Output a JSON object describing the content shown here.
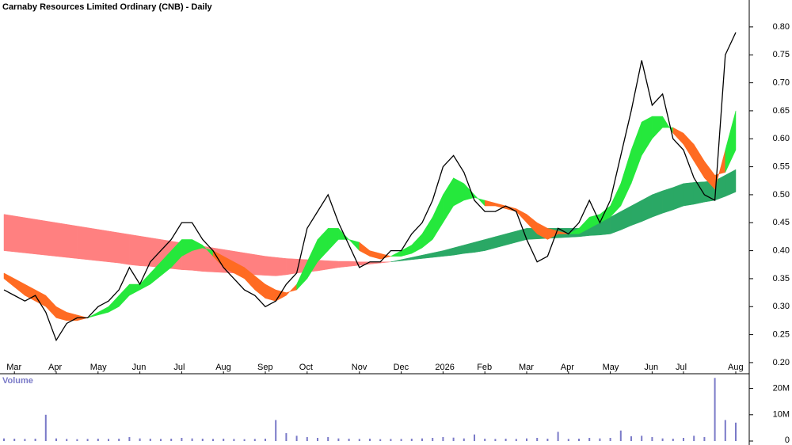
{
  "chart_data": [
    {
      "type": "line",
      "title": "Carnaby Resources Limited Ordinary (CNB) - Daily",
      "categories": [
        null,
        "Mar",
        null,
        null,
        null,
        "Apr",
        null,
        null,
        null,
        "May",
        null,
        null,
        null,
        "Jun",
        null,
        null,
        null,
        "Jul",
        null,
        null,
        null,
        "Aug",
        null,
        null,
        null,
        "Sep",
        null,
        null,
        null,
        "Oct",
        null,
        null,
        null,
        null,
        "Nov",
        null,
        null,
        null,
        "Dec",
        null,
        null,
        null,
        "2026",
        null,
        null,
        null,
        "Feb",
        null,
        null,
        null,
        "Mar",
        null,
        null,
        null,
        "Apr",
        null,
        null,
        null,
        "May",
        null,
        null,
        null,
        "Jun",
        null,
        null,
        "Jul",
        null,
        null,
        null,
        null,
        "Aug"
      ],
      "series": [
        {
          "color": "#000000",
          "values": [
            0.33,
            0.32,
            0.31,
            0.32,
            0.29,
            0.24,
            0.27,
            0.28,
            0.28,
            0.3,
            0.31,
            0.33,
            0.37,
            0.34,
            0.38,
            0.4,
            0.42,
            0.45,
            0.45,
            0.42,
            0.4,
            0.37,
            0.35,
            0.33,
            0.32,
            0.3,
            0.31,
            0.34,
            0.36,
            0.44,
            0.47,
            0.5,
            0.45,
            0.41,
            0.37,
            0.38,
            0.38,
            0.4,
            0.4,
            0.43,
            0.45,
            0.49,
            0.55,
            0.57,
            0.54,
            0.49,
            0.47,
            0.47,
            0.48,
            0.47,
            0.42,
            0.38,
            0.39,
            0.44,
            0.43,
            0.45,
            0.49,
            0.45,
            0.49,
            0.57,
            0.65,
            0.74,
            0.66,
            0.68,
            0.6,
            0.58,
            0.53,
            0.5,
            0.49,
            0.75,
            0.79
          ]
        }
      ],
      "bands": [
        {
          "up_color": "#2aa865",
          "down_color": "#ff8080",
          "fast": [
            0.4,
            0.398,
            0.396,
            0.394,
            0.392,
            0.39,
            0.388,
            0.386,
            0.384,
            0.382,
            0.38,
            0.378,
            0.375,
            0.373,
            0.372,
            0.37,
            0.368,
            0.366,
            0.365,
            0.363,
            0.362,
            0.361,
            0.36,
            0.358,
            0.357,
            0.356,
            0.355,
            0.357,
            0.36,
            0.362,
            0.364,
            0.367,
            0.37,
            0.372,
            0.374,
            0.376,
            0.378,
            0.38,
            0.384,
            0.388,
            0.392,
            0.396,
            0.4,
            0.405,
            0.41,
            0.415,
            0.42,
            0.425,
            0.43,
            0.435,
            0.44,
            0.44,
            0.44,
            0.44,
            0.44,
            0.44,
            0.447,
            0.453,
            0.46,
            0.47,
            0.48,
            0.49,
            0.5,
            0.507,
            0.513,
            0.52,
            0.522,
            0.523,
            0.525,
            0.535,
            0.545
          ],
          "slow": [
            0.465,
            0.462,
            0.459,
            0.456,
            0.453,
            0.45,
            0.447,
            0.444,
            0.441,
            0.438,
            0.435,
            0.432,
            0.429,
            0.426,
            0.423,
            0.42,
            0.417,
            0.414,
            0.411,
            0.408,
            0.405,
            0.402,
            0.399,
            0.396,
            0.393,
            0.39,
            0.388,
            0.386,
            0.385,
            0.384,
            0.383,
            0.382,
            0.381,
            0.381,
            0.38,
            0.38,
            0.38,
            0.38,
            0.382,
            0.384,
            0.386,
            0.388,
            0.39,
            0.392,
            0.395,
            0.397,
            0.4,
            0.405,
            0.41,
            0.415,
            0.42,
            0.421,
            0.422,
            0.423,
            0.424,
            0.425,
            0.427,
            0.428,
            0.43,
            0.437,
            0.445,
            0.452,
            0.46,
            0.467,
            0.473,
            0.48,
            0.483,
            0.487,
            0.49,
            0.497,
            0.505
          ]
        },
        {
          "up_color": "#25e83c",
          "down_color": "#ff6b22",
          "fast": [
            0.35,
            0.335,
            0.32,
            0.31,
            0.3,
            0.28,
            0.275,
            0.275,
            0.28,
            0.29,
            0.3,
            0.32,
            0.34,
            0.34,
            0.36,
            0.38,
            0.4,
            0.42,
            0.42,
            0.41,
            0.39,
            0.37,
            0.36,
            0.35,
            0.33,
            0.315,
            0.31,
            0.32,
            0.34,
            0.38,
            0.42,
            0.44,
            0.44,
            0.42,
            0.4,
            0.39,
            0.385,
            0.39,
            0.4,
            0.41,
            0.43,
            0.46,
            0.5,
            0.53,
            0.52,
            0.5,
            0.48,
            0.48,
            0.475,
            0.47,
            0.45,
            0.43,
            0.42,
            0.43,
            0.43,
            0.44,
            0.46,
            0.465,
            0.48,
            0.52,
            0.58,
            0.63,
            0.64,
            0.64,
            0.61,
            0.59,
            0.56,
            0.53,
            0.51,
            0.58,
            0.65
          ],
          "slow": [
            0.36,
            0.35,
            0.34,
            0.33,
            0.32,
            0.3,
            0.29,
            0.285,
            0.28,
            0.285,
            0.29,
            0.3,
            0.32,
            0.33,
            0.34,
            0.355,
            0.37,
            0.39,
            0.4,
            0.405,
            0.4,
            0.39,
            0.38,
            0.37,
            0.355,
            0.34,
            0.33,
            0.325,
            0.33,
            0.35,
            0.38,
            0.4,
            0.42,
            0.42,
            0.415,
            0.4,
            0.395,
            0.39,
            0.39,
            0.395,
            0.405,
            0.42,
            0.45,
            0.48,
            0.49,
            0.495,
            0.49,
            0.485,
            0.48,
            0.475,
            0.465,
            0.45,
            0.44,
            0.435,
            0.43,
            0.43,
            0.44,
            0.45,
            0.46,
            0.48,
            0.52,
            0.57,
            0.6,
            0.62,
            0.62,
            0.61,
            0.59,
            0.56,
            0.535,
            0.54,
            0.58
          ]
        }
      ],
      "ylim": [
        0.19,
        0.848
      ],
      "yticks": [
        {
          "value": 0.2,
          "label": "0.20"
        },
        {
          "value": 0.25,
          "label": "0.25"
        },
        {
          "value": 0.3,
          "label": "0.30"
        },
        {
          "value": 0.35,
          "label": "0.35"
        },
        {
          "value": 0.4,
          "label": "0.40"
        },
        {
          "value": 0.45,
          "label": "0.45"
        },
        {
          "value": 0.5,
          "label": "0.50"
        },
        {
          "value": 0.55,
          "label": "0.55"
        },
        {
          "value": 0.6,
          "label": "0.60"
        },
        {
          "value": 0.65,
          "label": "0.65"
        },
        {
          "value": 0.7,
          "label": "0.70"
        },
        {
          "value": 0.75,
          "label": "0.75"
        },
        {
          "value": 0.8,
          "label": "0.80"
        }
      ]
    },
    {
      "type": "bar",
      "title": "Volume",
      "color": "#7a7ac8",
      "values": [
        1000000,
        900000,
        800000,
        900000,
        10000000,
        1000000,
        800000,
        700000,
        800000,
        900000,
        800000,
        900000,
        1500000,
        1000000,
        900000,
        800000,
        900000,
        1200000,
        1000000,
        900000,
        800000,
        900000,
        800000,
        700000,
        800000,
        900000,
        8000000,
        3000000,
        2000000,
        1500000,
        1200000,
        1500000,
        1000000,
        900000,
        800000,
        900000,
        700000,
        800000,
        800000,
        900000,
        1000000,
        1200000,
        1500000,
        1300000,
        1000000,
        2500000,
        900000,
        800000,
        900000,
        800000,
        1000000,
        1200000,
        900000,
        3500000,
        800000,
        900000,
        1200000,
        1000000,
        1200000,
        4000000,
        1800000,
        2000000,
        1500000,
        1000000,
        900000,
        1200000,
        2000000,
        1500000,
        24000000,
        8000000,
        7000000
      ],
      "ylim": [
        0,
        25000000
      ],
      "yticks": [
        0,
        {
          "value": 10000000,
          "label": "10M"
        },
        {
          "value": 20000000,
          "label": "20M"
        }
      ]
    }
  ]
}
